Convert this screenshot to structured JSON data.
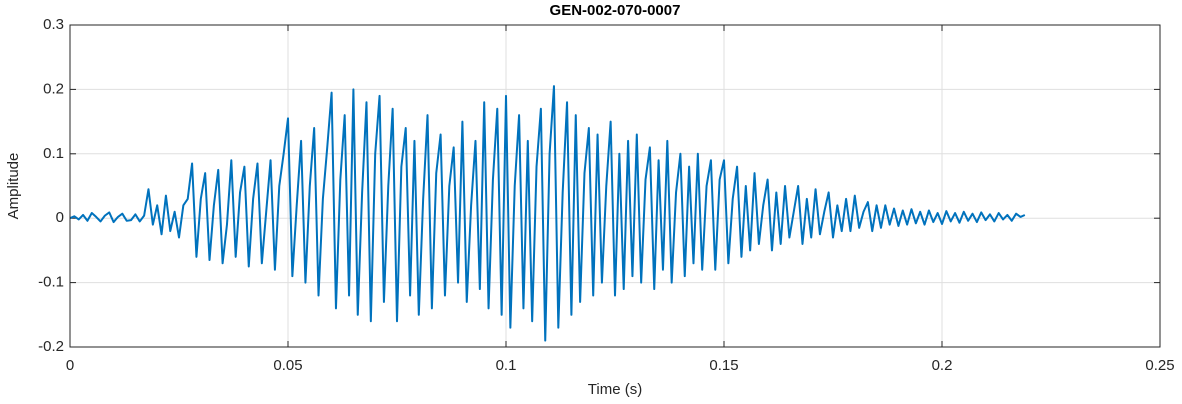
{
  "chart_data": {
    "type": "line",
    "title": "GEN-002-070-0007",
    "xlabel": "Time (s)",
    "ylabel": "Amplitude",
    "xlim": [
      0,
      0.25
    ],
    "xticks": [
      0,
      0.05,
      0.1,
      0.15,
      0.2,
      0.25
    ],
    "ylim": [
      -0.2,
      0.3
    ],
    "yticks": [
      -0.2,
      -0.1,
      0,
      0.1,
      0.2,
      0.3
    ],
    "grid": true,
    "x": [
      0,
      0.001,
      0.002,
      0.003,
      0.004,
      0.005,
      0.006,
      0.007,
      0.008,
      0.009,
      0.01,
      0.011,
      0.012,
      0.013,
      0.014,
      0.015,
      0.016,
      0.017,
      0.018,
      0.019,
      0.02,
      0.021,
      0.022,
      0.023,
      0.024,
      0.025,
      0.026,
      0.027,
      0.028,
      0.029,
      0.03,
      0.031,
      0.032,
      0.033,
      0.034,
      0.035,
      0.036,
      0.037,
      0.038,
      0.039,
      0.04,
      0.041,
      0.042,
      0.043,
      0.044,
      0.045,
      0.046,
      0.047,
      0.048,
      0.049,
      0.05,
      0.051,
      0.052,
      0.053,
      0.054,
      0.055,
      0.056,
      0.057,
      0.058,
      0.059,
      0.06,
      0.061,
      0.062,
      0.063,
      0.064,
      0.065,
      0.066,
      0.067,
      0.068,
      0.069,
      0.07,
      0.071,
      0.072,
      0.073,
      0.074,
      0.075,
      0.076,
      0.077,
      0.078,
      0.079,
      0.08,
      0.081,
      0.082,
      0.083,
      0.084,
      0.085,
      0.086,
      0.087,
      0.088,
      0.089,
      0.09,
      0.091,
      0.092,
      0.093,
      0.094,
      0.095,
      0.096,
      0.097,
      0.098,
      0.099,
      0.1,
      0.101,
      0.102,
      0.103,
      0.104,
      0.105,
      0.106,
      0.107,
      0.108,
      0.109,
      0.11,
      0.111,
      0.112,
      0.113,
      0.114,
      0.115,
      0.116,
      0.117,
      0.118,
      0.119,
      0.12,
      0.121,
      0.122,
      0.123,
      0.124,
      0.125,
      0.126,
      0.127,
      0.128,
      0.129,
      0.13,
      0.131,
      0.132,
      0.133,
      0.134,
      0.135,
      0.136,
      0.137,
      0.138,
      0.139,
      0.14,
      0.141,
      0.142,
      0.143,
      0.144,
      0.145,
      0.146,
      0.147,
      0.148,
      0.149,
      0.15,
      0.151,
      0.152,
      0.153,
      0.154,
      0.155,
      0.156,
      0.157,
      0.158,
      0.159,
      0.16,
      0.161,
      0.162,
      0.163,
      0.164,
      0.165,
      0.166,
      0.167,
      0.168,
      0.169,
      0.17,
      0.171,
      0.172,
      0.173,
      0.174,
      0.175,
      0.176,
      0.177,
      0.178,
      0.179,
      0.18,
      0.181,
      0.182,
      0.183,
      0.184,
      0.185,
      0.186,
      0.187,
      0.188,
      0.189,
      0.19,
      0.191,
      0.192,
      0.193,
      0.194,
      0.195,
      0.196,
      0.197,
      0.198,
      0.199,
      0.2,
      0.201,
      0.202,
      0.203,
      0.204,
      0.205,
      0.206,
      0.207,
      0.208,
      0.209,
      0.21,
      0.211,
      0.212,
      0.213,
      0.214,
      0.215,
      0.216,
      0.217,
      0.218,
      0.219
    ],
    "series": [
      {
        "color": "#0072BD",
        "values": [
          0,
          0.003,
          -0.002,
          0.005,
          -0.004,
          0.008,
          0.002,
          -0.005,
          0.004,
          0.009,
          -0.006,
          0.002,
          0.007,
          -0.004,
          -0.003,
          0.006,
          -0.005,
          0.004,
          0.045,
          -0.01,
          0.02,
          -0.025,
          0.035,
          -0.02,
          0.01,
          -0.03,
          0.02,
          0.03,
          0.085,
          -0.06,
          0.03,
          0.07,
          -0.065,
          0.02,
          0.075,
          -0.07,
          -0.01,
          0.09,
          -0.06,
          0.04,
          0.08,
          -0.075,
          0.03,
          0.085,
          -0.07,
          0.01,
          0.09,
          -0.08,
          0.05,
          0.1,
          0.155,
          -0.09,
          0.02,
          0.12,
          -0.1,
          0.05,
          0.14,
          -0.12,
          0.03,
          0.11,
          0.195,
          -0.14,
          0.06,
          0.16,
          -0.12,
          0.2,
          -0.15,
          0.04,
          0.18,
          -0.16,
          0.1,
          0.19,
          -0.13,
          0.05,
          0.17,
          -0.16,
          0.08,
          0.14,
          -0.12,
          0.12,
          -0.15,
          0.03,
          0.16,
          -0.14,
          0.07,
          0.13,
          -0.12,
          0.05,
          0.11,
          -0.1,
          0.15,
          -0.13,
          0.02,
          0.12,
          -0.11,
          0.18,
          -0.14,
          0.06,
          0.17,
          -0.15,
          0.19,
          -0.17,
          0.05,
          0.16,
          -0.14,
          0.12,
          -0.16,
          0.08,
          0.17,
          -0.19,
          0.1,
          0.205,
          -0.17,
          0.04,
          0.18,
          -0.15,
          0.16,
          -0.13,
          0.07,
          0.14,
          -0.12,
          0.13,
          -0.1,
          0.05,
          0.15,
          -0.12,
          0.1,
          -0.11,
          0.12,
          -0.09,
          0.13,
          -0.1,
          0.06,
          0.11,
          -0.11,
          0.09,
          -0.08,
          0.12,
          -0.1,
          0.04,
          0.1,
          -0.09,
          0.08,
          -0.07,
          0.1,
          -0.08,
          0.05,
          0.09,
          -0.08,
          0.06,
          0.09,
          -0.07,
          0.03,
          0.08,
          -0.06,
          0.05,
          -0.05,
          0.07,
          -0.04,
          0.02,
          0.06,
          -0.05,
          0.04,
          -0.04,
          0.05,
          -0.03,
          0.01,
          0.05,
          -0.04,
          0.03,
          -0.03,
          0.045,
          -0.025,
          0.01,
          0.04,
          -0.03,
          0.02,
          -0.02,
          0.03,
          -0.02,
          0.035,
          -0.015,
          0.01,
          0.025,
          -0.02,
          0.02,
          -0.015,
          0.02,
          -0.01,
          0.015,
          -0.012,
          0.012,
          -0.01,
          0.014,
          -0.008,
          0.01,
          -0.01,
          0.012,
          -0.006,
          0.008,
          -0.009,
          0.011,
          -0.005,
          0.008,
          -0.007,
          0.01,
          -0.004,
          0.007,
          -0.006,
          0.009,
          -0.003,
          0.006,
          -0.005,
          0.008,
          -0.002,
          0.005,
          -0.004,
          0.007,
          0.002,
          0.005
        ]
      }
    ]
  }
}
